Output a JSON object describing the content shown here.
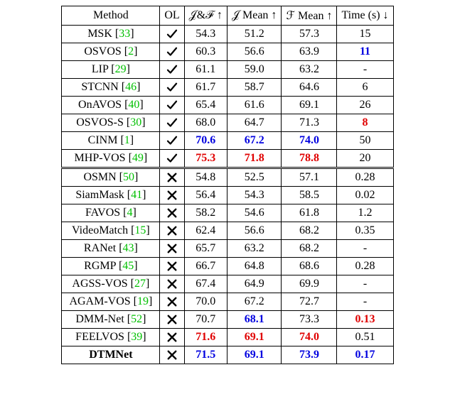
{
  "header": {
    "method": "Method",
    "ol": "OL",
    "jf": "𝒥&ℱ ↑",
    "jmean": "𝒥 Mean ↑",
    "fmean": "ℱ Mean ↑",
    "time": "Time (s) ↓"
  },
  "groups": [
    {
      "ol": true,
      "rows": [
        {
          "name": "MSK",
          "ref": "33",
          "jf": {
            "v": "54.3",
            "s": ""
          },
          "jmean": {
            "v": "51.2",
            "s": ""
          },
          "fmean": {
            "v": "57.3",
            "s": ""
          },
          "time": {
            "v": "15",
            "s": ""
          }
        },
        {
          "name": "OSVOS",
          "ref": "2",
          "jf": {
            "v": "60.3",
            "s": ""
          },
          "jmean": {
            "v": "56.6",
            "s": ""
          },
          "fmean": {
            "v": "63.9",
            "s": ""
          },
          "time": {
            "v": "11",
            "s": "blue"
          }
        },
        {
          "name": "LIP",
          "ref": "29",
          "jf": {
            "v": "61.1",
            "s": ""
          },
          "jmean": {
            "v": "59.0",
            "s": ""
          },
          "fmean": {
            "v": "63.2",
            "s": ""
          },
          "time": {
            "v": "-",
            "s": ""
          }
        },
        {
          "name": "STCNN",
          "ref": "46",
          "jf": {
            "v": "61.7",
            "s": ""
          },
          "jmean": {
            "v": "58.7",
            "s": ""
          },
          "fmean": {
            "v": "64.6",
            "s": ""
          },
          "time": {
            "v": "6",
            "s": ""
          }
        },
        {
          "name": "OnAVOS",
          "ref": "40",
          "jf": {
            "v": "65.4",
            "s": ""
          },
          "jmean": {
            "v": "61.6",
            "s": ""
          },
          "fmean": {
            "v": "69.1",
            "s": ""
          },
          "time": {
            "v": "26",
            "s": ""
          }
        },
        {
          "name": "OSVOS-S",
          "ref": "30",
          "jf": {
            "v": "68.0",
            "s": ""
          },
          "jmean": {
            "v": "64.7",
            "s": ""
          },
          "fmean": {
            "v": "71.3",
            "s": ""
          },
          "time": {
            "v": "8",
            "s": "red"
          }
        },
        {
          "name": "CINM",
          "ref": "1",
          "jf": {
            "v": "70.6",
            "s": "blue"
          },
          "jmean": {
            "v": "67.2",
            "s": "blue"
          },
          "fmean": {
            "v": "74.0",
            "s": "blue"
          },
          "time": {
            "v": "50",
            "s": ""
          }
        },
        {
          "name": "MHP-VOS",
          "ref": "49",
          "jf": {
            "v": "75.3",
            "s": "red"
          },
          "jmean": {
            "v": "71.8",
            "s": "red"
          },
          "fmean": {
            "v": "78.8",
            "s": "red"
          },
          "time": {
            "v": "20",
            "s": ""
          }
        }
      ]
    },
    {
      "ol": false,
      "rows": [
        {
          "name": "OSMN",
          "ref": "50",
          "jf": {
            "v": "54.8",
            "s": ""
          },
          "jmean": {
            "v": "52.5",
            "s": ""
          },
          "fmean": {
            "v": "57.1",
            "s": ""
          },
          "time": {
            "v": "0.28",
            "s": ""
          }
        },
        {
          "name": "SiamMask",
          "ref": "41",
          "jf": {
            "v": "56.4",
            "s": ""
          },
          "jmean": {
            "v": "54.3",
            "s": ""
          },
          "fmean": {
            "v": "58.5",
            "s": ""
          },
          "time": {
            "v": "0.02",
            "s": ""
          }
        },
        {
          "name": "FAVOS",
          "ref": "4",
          "jf": {
            "v": "58.2",
            "s": ""
          },
          "jmean": {
            "v": "54.6",
            "s": ""
          },
          "fmean": {
            "v": "61.8",
            "s": ""
          },
          "time": {
            "v": "1.2",
            "s": ""
          }
        },
        {
          "name": "VideoMatch",
          "ref": "15",
          "jf": {
            "v": "62.4",
            "s": ""
          },
          "jmean": {
            "v": "56.6",
            "s": ""
          },
          "fmean": {
            "v": "68.2",
            "s": ""
          },
          "time": {
            "v": "0.35",
            "s": ""
          }
        },
        {
          "name": "RANet",
          "ref": "43",
          "jf": {
            "v": "65.7",
            "s": ""
          },
          "jmean": {
            "v": "63.2",
            "s": ""
          },
          "fmean": {
            "v": "68.2",
            "s": ""
          },
          "time": {
            "v": "-",
            "s": ""
          }
        },
        {
          "name": "RGMP",
          "ref": "45",
          "jf": {
            "v": "66.7",
            "s": ""
          },
          "jmean": {
            "v": "64.8",
            "s": ""
          },
          "fmean": {
            "v": "68.6",
            "s": ""
          },
          "time": {
            "v": "0.28",
            "s": ""
          }
        },
        {
          "name": "AGSS-VOS",
          "ref": "27",
          "jf": {
            "v": "67.4",
            "s": ""
          },
          "jmean": {
            "v": "64.9",
            "s": ""
          },
          "fmean": {
            "v": "69.9",
            "s": ""
          },
          "time": {
            "v": "-",
            "s": ""
          }
        },
        {
          "name": "AGAM-VOS",
          "ref": "19",
          "jf": {
            "v": "70.0",
            "s": ""
          },
          "jmean": {
            "v": "67.2",
            "s": ""
          },
          "fmean": {
            "v": "72.7",
            "s": ""
          },
          "time": {
            "v": "-",
            "s": ""
          }
        },
        {
          "name": "DMM-Net",
          "ref": "52",
          "jf": {
            "v": "70.7",
            "s": ""
          },
          "jmean": {
            "v": "68.1",
            "s": "blue"
          },
          "fmean": {
            "v": "73.3",
            "s": ""
          },
          "time": {
            "v": "0.13",
            "s": "red"
          }
        },
        {
          "name": "FEELVOS",
          "ref": "39",
          "jf": {
            "v": "71.6",
            "s": "red"
          },
          "jmean": {
            "v": "69.1",
            "s": "red"
          },
          "fmean": {
            "v": "74.0",
            "s": "red"
          },
          "time": {
            "v": "0.51",
            "s": ""
          }
        },
        {
          "name": "DTMNet",
          "ref": "",
          "bold": true,
          "jf": {
            "v": "71.5",
            "s": "blue"
          },
          "jmean": {
            "v": "69.1",
            "s": "blue"
          },
          "fmean": {
            "v": "73.9",
            "s": "blue"
          },
          "time": {
            "v": "0.17",
            "s": "blue"
          }
        }
      ]
    }
  ],
  "icons": {
    "check": "check-icon",
    "cross": "cross-icon"
  },
  "colors": {
    "ref": "#00c000",
    "red": "#e00000",
    "blue": "#0000e0",
    "border": "#000000",
    "bg": "#ffffff"
  }
}
